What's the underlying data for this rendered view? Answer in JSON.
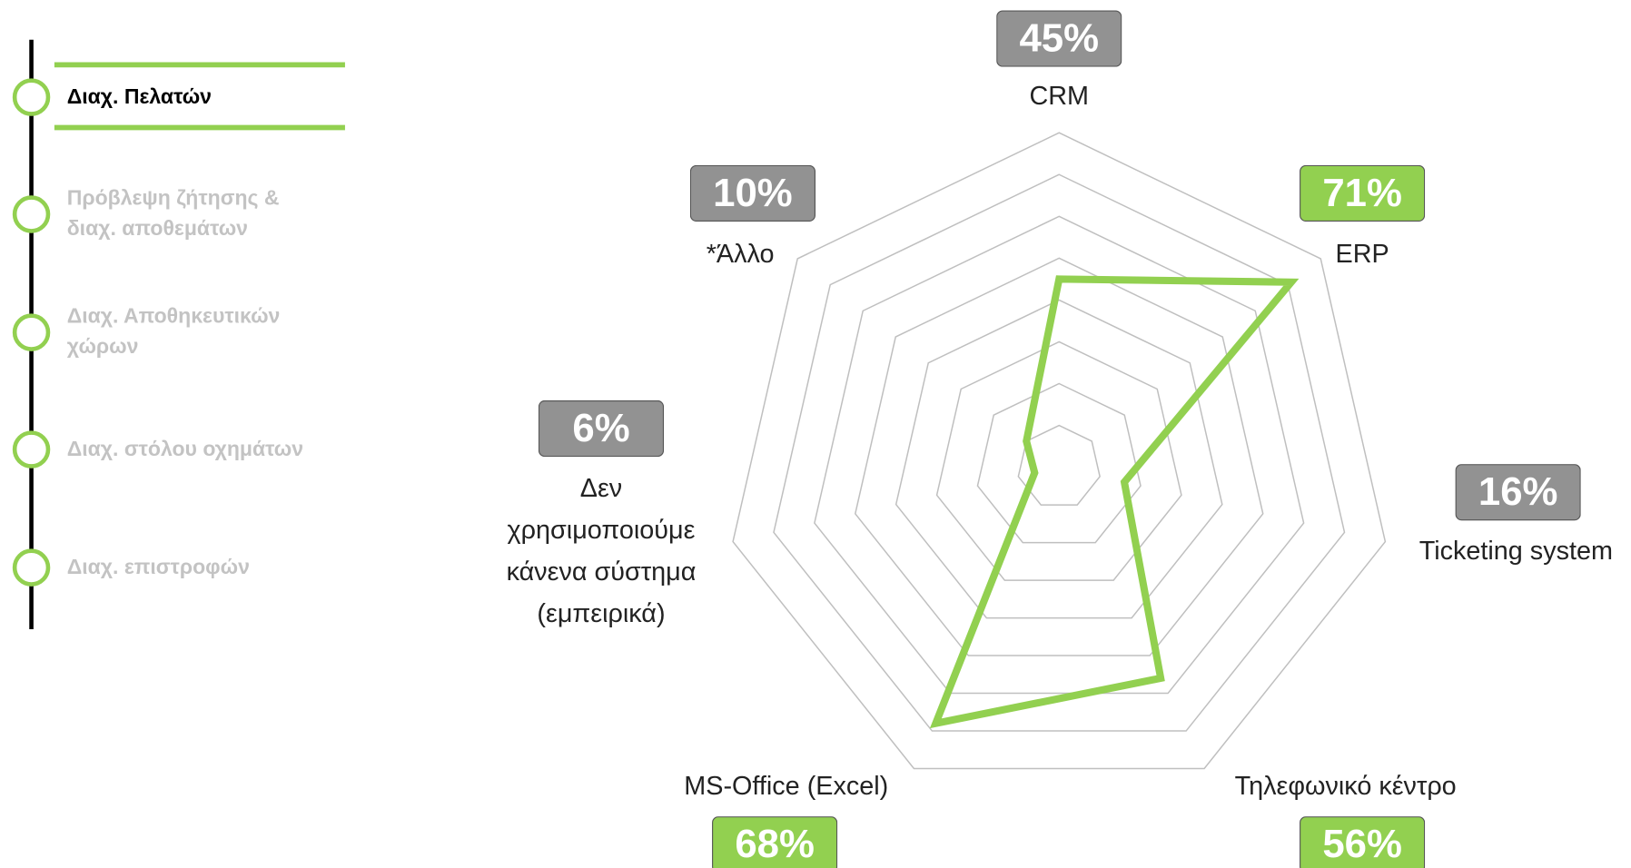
{
  "sidebar": {
    "items": [
      "Διαχ. Πελατών",
      "Πρόβλεψη ζήτησης &\nδιαχ. αποθεμάτων",
      "Διαχ. Αποθηκευτικών\nχώρων",
      "Διαχ. στόλου οχημάτων",
      "Διαχ. επιστροφών"
    ],
    "active": 0
  },
  "chart_data": {
    "type": "radar",
    "categories": [
      "CRM",
      "ERP",
      "Ticketing system",
      "Τηλεφωνικό κέντρο",
      "MS-Office (Excel)",
      "Δεν\nχρησιμοποιούμε\nκάνενα σύστημα\n(εμπειρικά)",
      "*Άλλο"
    ],
    "values": [
      45,
      71,
      16,
      56,
      68,
      6,
      10
    ],
    "value_labels": [
      "45%",
      "71%",
      "16%",
      "56%",
      "68%",
      "6%",
      "10%"
    ],
    "color": "#92d050",
    "box_colors": [
      "#929292",
      "#92d050",
      "#929292",
      "#92d050",
      "#92d050",
      "#929292",
      "#929292"
    ],
    "ylim": [
      0,
      80
    ],
    "yticks": [
      0,
      10,
      20,
      30,
      40,
      50,
      60,
      70,
      80
    ],
    "grid": true
  }
}
